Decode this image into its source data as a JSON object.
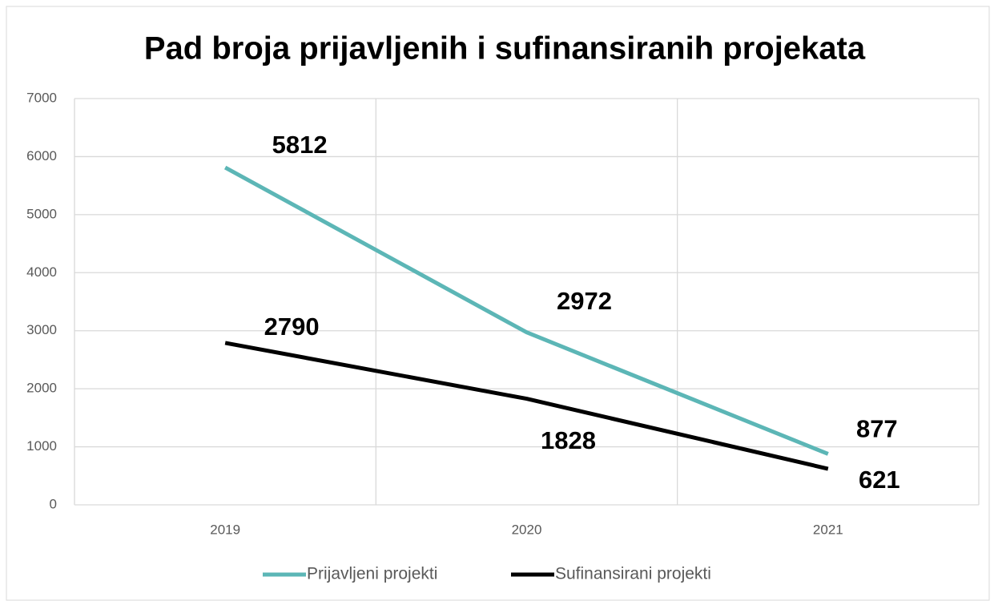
{
  "chart_data": {
    "type": "line",
    "title": "Pad broja prijavljenih i sufinansiranih projekata",
    "categories": [
      "2019",
      "2020",
      "2021"
    ],
    "series": [
      {
        "name": "Prijavljeni projekti",
        "color": "#5cb6b6",
        "values": [
          5812,
          2972,
          877
        ]
      },
      {
        "name": "Sufinansirani projekti",
        "color": "#000000",
        "values": [
          2790,
          1828,
          621
        ]
      }
    ],
    "ylim": [
      0,
      7000
    ],
    "yticks": [
      0,
      1000,
      2000,
      3000,
      4000,
      5000,
      6000,
      7000
    ],
    "grid": true,
    "legend": "bottom"
  }
}
